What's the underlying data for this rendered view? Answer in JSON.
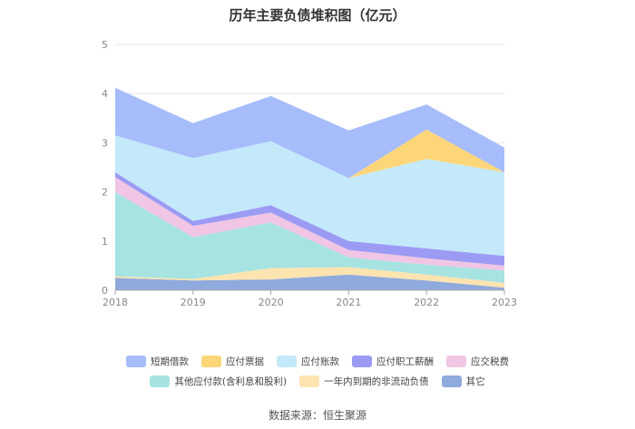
{
  "chart_data": {
    "type": "area",
    "stacked": true,
    "title": "历年主要负债堆积图（亿元）",
    "x": [
      "2018",
      "2019",
      "2020",
      "2021",
      "2022",
      "2023"
    ],
    "ylim": [
      0,
      5
    ],
    "yticks": [
      "0",
      "1",
      "2",
      "3",
      "4",
      "5"
    ],
    "grid": true,
    "legend_position": "bottom",
    "series": [
      {
        "name": "其它",
        "color": "#8faadc",
        "values": [
          0.25,
          0.2,
          0.22,
          0.32,
          0.2,
          0.05
        ]
      },
      {
        "name": "一年内到期的非流动负债",
        "color": "#fde3b0",
        "values": [
          0.03,
          0.03,
          0.23,
          0.15,
          0.12,
          0.1
        ]
      },
      {
        "name": "其他应付款(含利息和股利)",
        "color": "#a6e3e1",
        "values": [
          1.72,
          0.85,
          0.93,
          0.2,
          0.2,
          0.25
        ]
      },
      {
        "name": "应交税费",
        "color": "#f0c6e4",
        "values": [
          0.3,
          0.23,
          0.2,
          0.15,
          0.13,
          0.1
        ]
      },
      {
        "name": "应付职工薪酬",
        "color": "#9b9bf4",
        "values": [
          0.1,
          0.1,
          0.15,
          0.18,
          0.2,
          0.2
        ]
      },
      {
        "name": "应付账款",
        "color": "#c3e9fb",
        "values": [
          0.75,
          1.28,
          1.3,
          1.28,
          1.82,
          1.7
        ]
      },
      {
        "name": "应付票据",
        "color": "#fed67a",
        "values": [
          0,
          0,
          0,
          0,
          0.6,
          0
        ]
      },
      {
        "name": "短期借款",
        "color": "#a7bcfb",
        "values": [
          0.97,
          0.71,
          0.92,
          0.97,
          0.51,
          0.5
        ]
      }
    ],
    "legend_order": [
      "短期借款",
      "应付票据",
      "应付账款",
      "应付职工薪酬",
      "应交税费",
      "其他应付款(含利息和股利)",
      "一年内到期的非流动负债",
      "其它"
    ]
  },
  "source_note": "数据来源：恒生聚源"
}
